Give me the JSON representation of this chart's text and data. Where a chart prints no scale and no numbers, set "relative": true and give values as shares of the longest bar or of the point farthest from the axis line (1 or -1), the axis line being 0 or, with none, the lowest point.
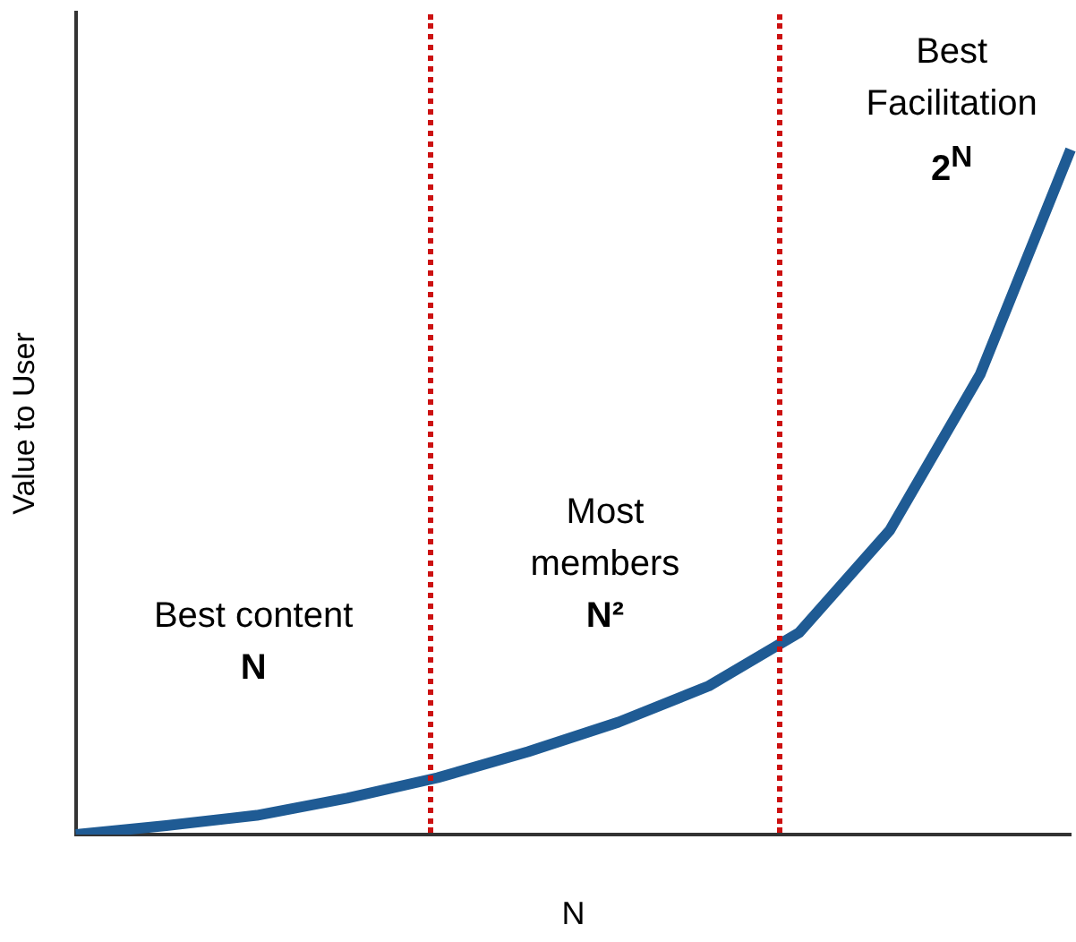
{
  "chart_data": {
    "type": "line",
    "relative": true,
    "xlabel": "N",
    "ylabel": "Value to User",
    "categories": [
      null,
      null,
      null,
      null,
      null,
      null,
      null,
      null,
      null,
      null,
      null,
      null
    ],
    "series": [
      {
        "color": "#1f5b94",
        "values": [
          0,
          0.013,
          0.028,
          0.053,
          0.083,
          0.121,
          0.164,
          0.217,
          0.295,
          0.444,
          0.672,
          1
        ]
      }
    ],
    "annotations": [
      "Best content",
      "N",
      "Most members",
      "N²",
      "Best Facilitation",
      "2$^{N}$"
    ],
    "marker": "none",
    "line_style": "solid",
    "grid": false,
    "legend": false
  }
}
